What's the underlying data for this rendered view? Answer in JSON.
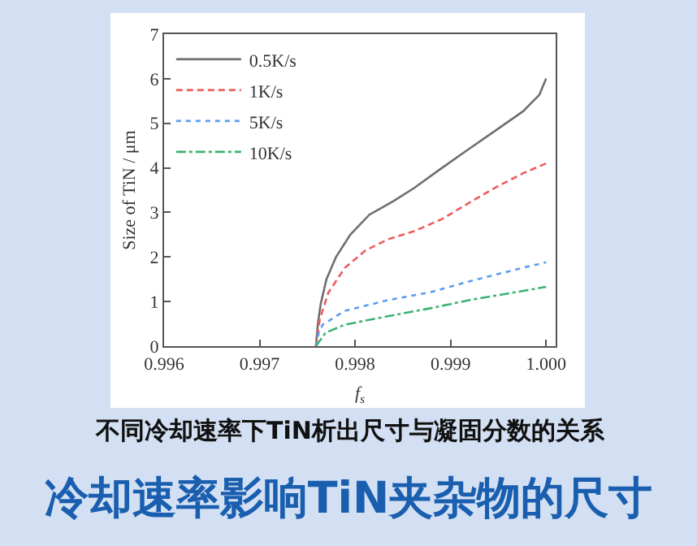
{
  "chart_data": {
    "type": "line",
    "title": "冷却速率影响TiN夹杂物的尺寸",
    "annotations": [
      "不同冷却速率下TiN析出尺寸与凝固分数的关系"
    ],
    "xlabel": "f$_{s}$",
    "ylabel": "Size of TiN / μm",
    "xlim": [
      0.996,
      1.0001
    ],
    "xticks": [
      0.996,
      0.997,
      0.998,
      0.999,
      {
        "value": 1.0,
        "label": "1.000"
      }
    ],
    "ylim": [
      0,
      7
    ],
    "yticks": [
      0,
      1,
      2,
      3,
      4,
      5,
      6,
      7
    ],
    "grid": false,
    "legend": "top left",
    "series": [
      {
        "name": "0.5K/s",
        "color": "#6e6e6e",
        "line_style": "solid",
        "x": [
          0.99759,
          0.99761,
          0.99764,
          0.9977,
          0.9978,
          0.99795,
          0.99815,
          0.9984,
          0.99862,
          0.99891,
          0.99919,
          0.99948,
          0.99976,
          0.99993,
          1.0
        ],
        "values": [
          0,
          0.5,
          0.95,
          1.5,
          2.0,
          2.5,
          2.95,
          3.25,
          3.55,
          4.0,
          4.42,
          4.85,
          5.27,
          5.64,
          6.0
        ]
      },
      {
        "name": "1K/s",
        "color": "#f05a5a",
        "line_style": "dashed",
        "x": [
          0.99759,
          0.99763,
          0.99772,
          0.99789,
          0.99811,
          0.99835,
          0.99862,
          0.99891,
          0.99919,
          0.99948,
          0.99976,
          1.0
        ],
        "values": [
          0,
          0.6,
          1.2,
          1.75,
          2.15,
          2.4,
          2.58,
          2.85,
          3.21,
          3.57,
          3.88,
          4.1
        ]
      },
      {
        "name": "5K/s",
        "color": "#5b9cf0",
        "line_style": "dotted",
        "x": [
          0.99759,
          0.99762,
          0.99766,
          0.99789,
          0.99834,
          0.99879,
          0.99919,
          0.99976,
          1.0
        ],
        "values": [
          0,
          0.3,
          0.48,
          0.79,
          1.03,
          1.21,
          1.45,
          1.76,
          1.88
        ]
      },
      {
        "name": "10K/s",
        "color": "#3cb371",
        "line_style": "dashdot",
        "x": [
          0.99759,
          0.99769,
          0.99789,
          0.99834,
          0.99879,
          0.99919,
          0.99976,
          1.0
        ],
        "values": [
          0,
          0.3,
          0.48,
          0.67,
          0.85,
          1.03,
          1.24,
          1.33
        ]
      }
    ]
  }
}
